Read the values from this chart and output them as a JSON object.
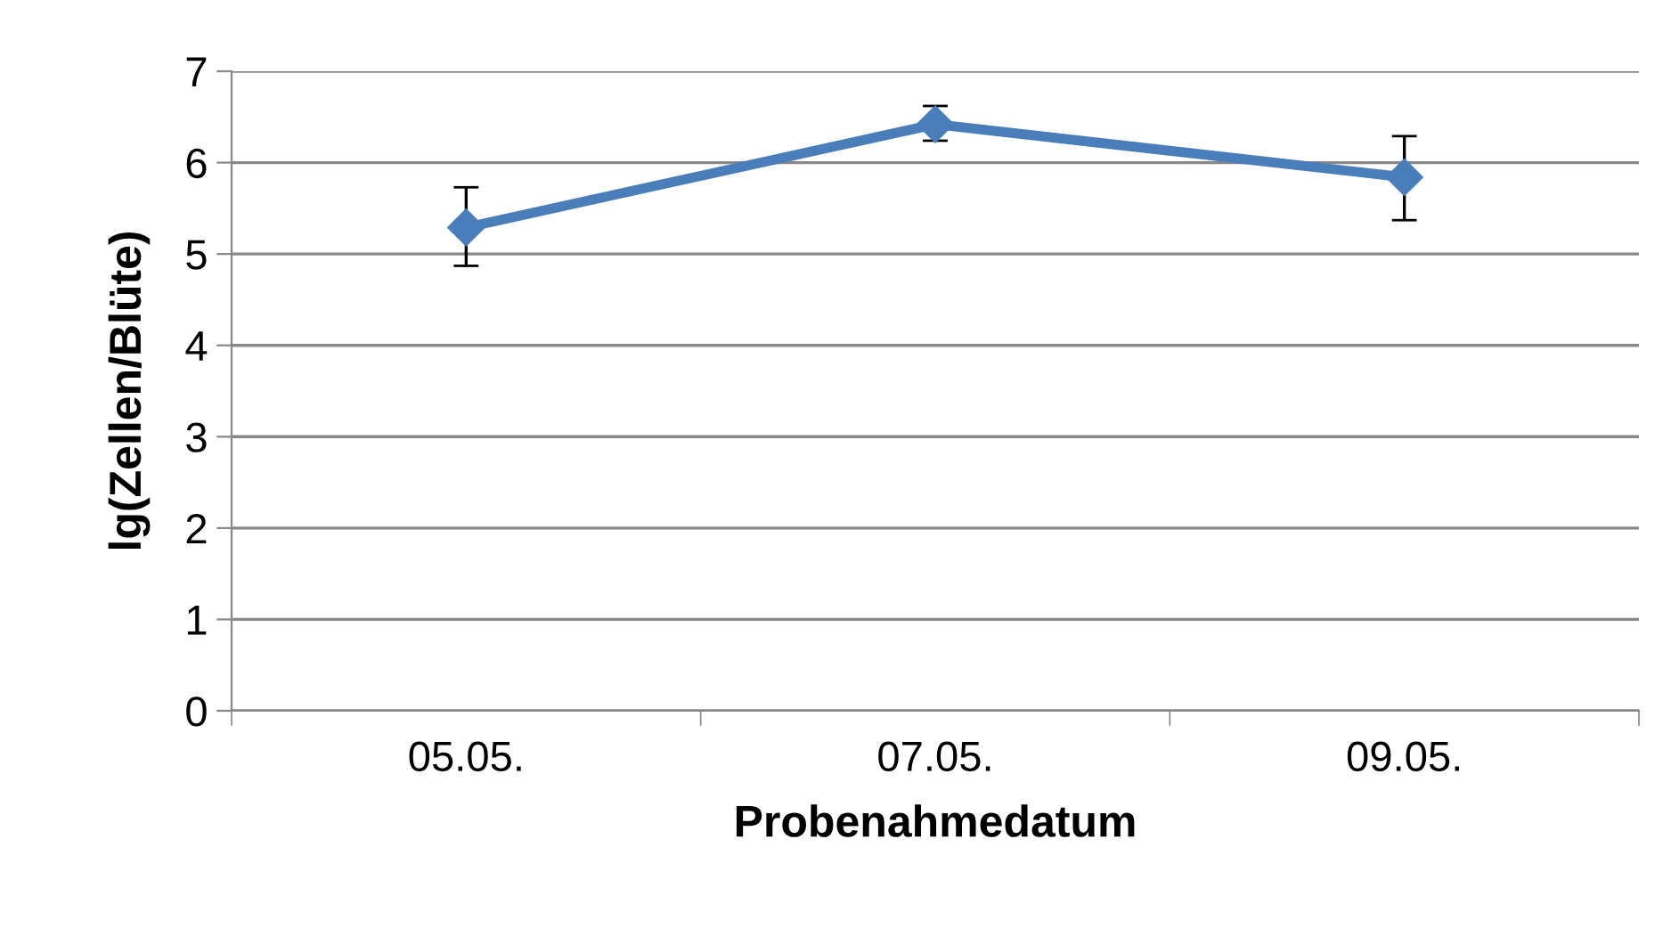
{
  "chart_data": {
    "type": "line",
    "xlabel": "Probenahmedatum",
    "ylabel": "lg(Zellen/Blüte)",
    "categories": [
      "05.05.",
      "07.05.",
      "09.05."
    ],
    "series": [
      {
        "color": "#4a7ebb",
        "values": [
          5.29,
          6.42,
          5.84
        ],
        "errors": [
          [
            4.87,
            5.73
          ],
          [
            6.24,
            6.62
          ],
          [
            5.37,
            6.29
          ]
        ]
      }
    ],
    "ylim": [
      0,
      7
    ],
    "yticks": [
      0,
      1,
      2,
      3,
      4,
      5,
      6,
      7
    ],
    "grid": "y",
    "marker": "diamond",
    "line_style": "solid"
  }
}
